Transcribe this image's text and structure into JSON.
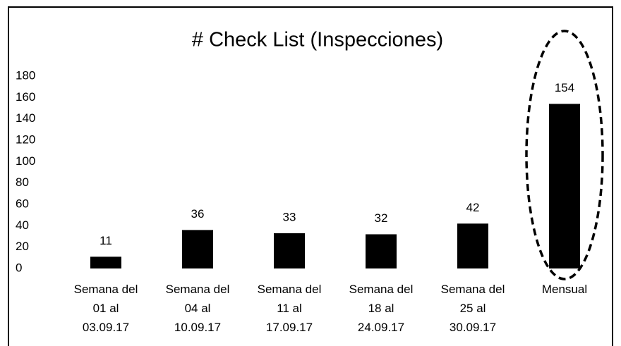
{
  "chart_data": {
    "type": "bar",
    "title": "# Check List (Inspecciones)",
    "categories": [
      [
        "Semana del",
        "01 al",
        "03.09.17"
      ],
      [
        "Semana del",
        "04 al",
        "10.09.17"
      ],
      [
        "Semana del",
        "11 al",
        "17.09.17"
      ],
      [
        "Semana del",
        "18 al",
        "24.09.17"
      ],
      [
        "Semana del",
        "25 al",
        "30.09.17"
      ],
      [
        "Mensual"
      ]
    ],
    "values": [
      11,
      36,
      33,
      32,
      42,
      154
    ],
    "color": "#000000",
    "ylim": [
      0,
      180
    ],
    "yticks": [
      0,
      20,
      40,
      60,
      80,
      100,
      120,
      140,
      160,
      180
    ],
    "grid": false
  }
}
